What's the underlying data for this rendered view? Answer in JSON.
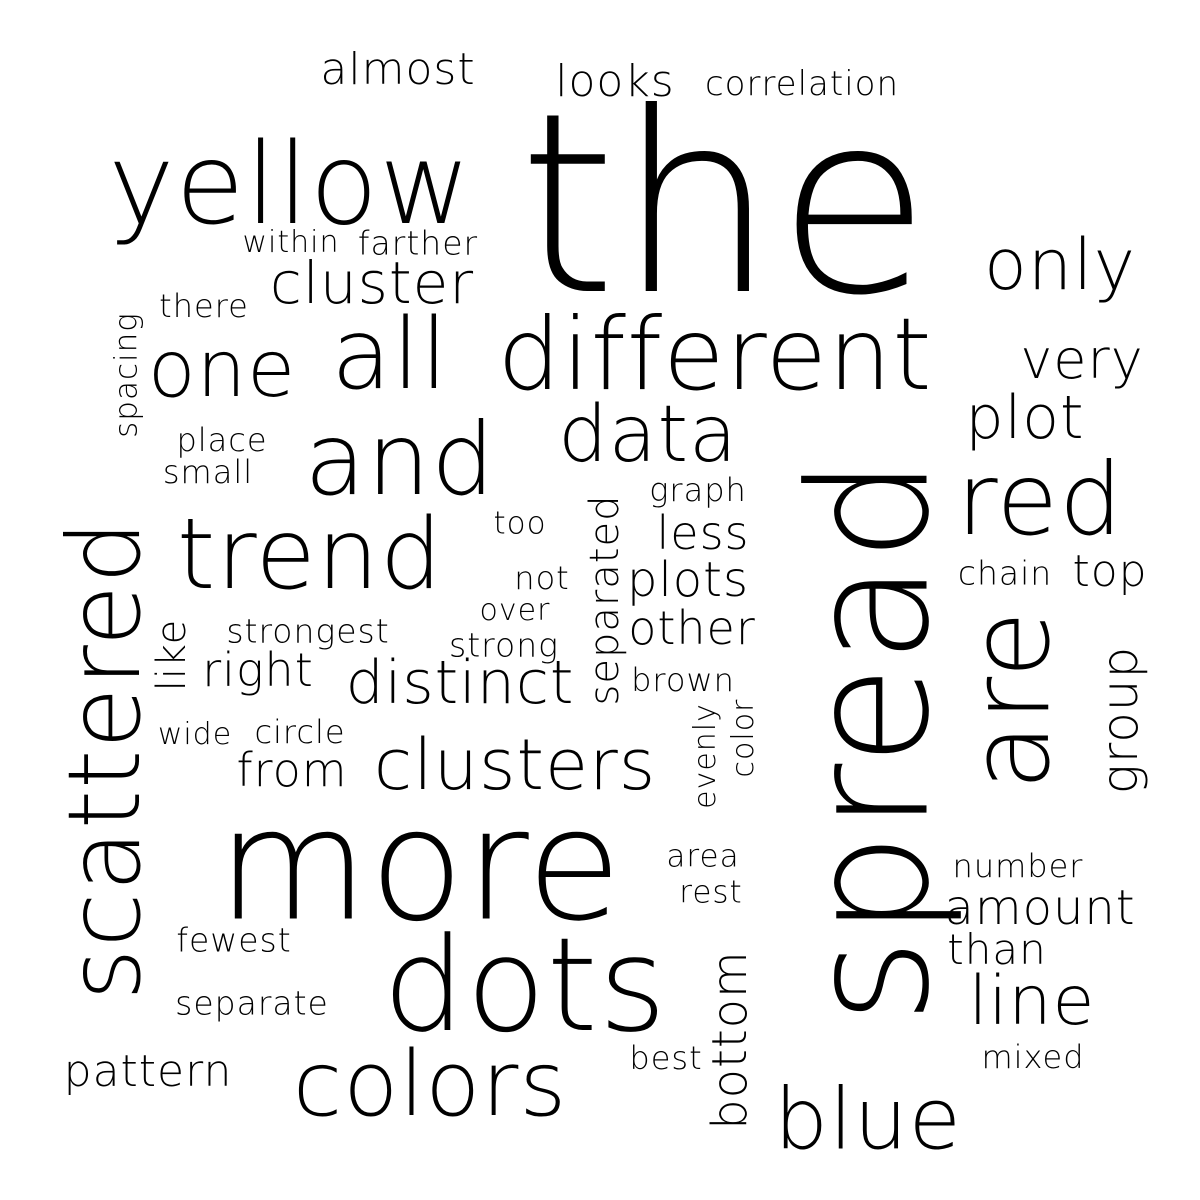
{
  "words": [
    {
      "text": "the"
    },
    {
      "text": "spread"
    },
    {
      "text": "more"
    },
    {
      "text": "different"
    },
    {
      "text": "dots"
    },
    {
      "text": "scattered"
    },
    {
      "text": "yellow"
    },
    {
      "text": "and"
    },
    {
      "text": "trend"
    },
    {
      "text": "are"
    },
    {
      "text": "red"
    },
    {
      "text": "colors"
    },
    {
      "text": "all"
    },
    {
      "text": "one"
    },
    {
      "text": "blue"
    },
    {
      "text": "clusters"
    },
    {
      "text": "data"
    },
    {
      "text": "only"
    },
    {
      "text": "distinct"
    },
    {
      "text": "cluster"
    },
    {
      "text": "line"
    },
    {
      "text": "plot"
    },
    {
      "text": "very"
    },
    {
      "text": "plots"
    },
    {
      "text": "other"
    },
    {
      "text": "less"
    },
    {
      "text": "right"
    },
    {
      "text": "from"
    },
    {
      "text": "amount"
    },
    {
      "text": "group"
    },
    {
      "text": "bottom"
    },
    {
      "text": "separated"
    },
    {
      "text": "almost"
    },
    {
      "text": "pattern"
    },
    {
      "text": "looks"
    },
    {
      "text": "than"
    },
    {
      "text": "top"
    },
    {
      "text": "correlation"
    },
    {
      "text": "farther"
    },
    {
      "text": "separate"
    },
    {
      "text": "strongest"
    },
    {
      "text": "strong"
    },
    {
      "text": "fewest"
    },
    {
      "text": "like"
    },
    {
      "text": "chain"
    },
    {
      "text": "brown"
    },
    {
      "text": "graph"
    },
    {
      "text": "circle"
    },
    {
      "text": "number"
    },
    {
      "text": "mixed"
    },
    {
      "text": "place"
    },
    {
      "text": "small"
    },
    {
      "text": "there"
    },
    {
      "text": "within"
    },
    {
      "text": "not"
    },
    {
      "text": "over"
    },
    {
      "text": "wide"
    },
    {
      "text": "area"
    },
    {
      "text": "rest"
    },
    {
      "text": "best"
    },
    {
      "text": "too"
    },
    {
      "text": "spacing"
    },
    {
      "text": "evenly"
    },
    {
      "text": "color"
    }
  ]
}
